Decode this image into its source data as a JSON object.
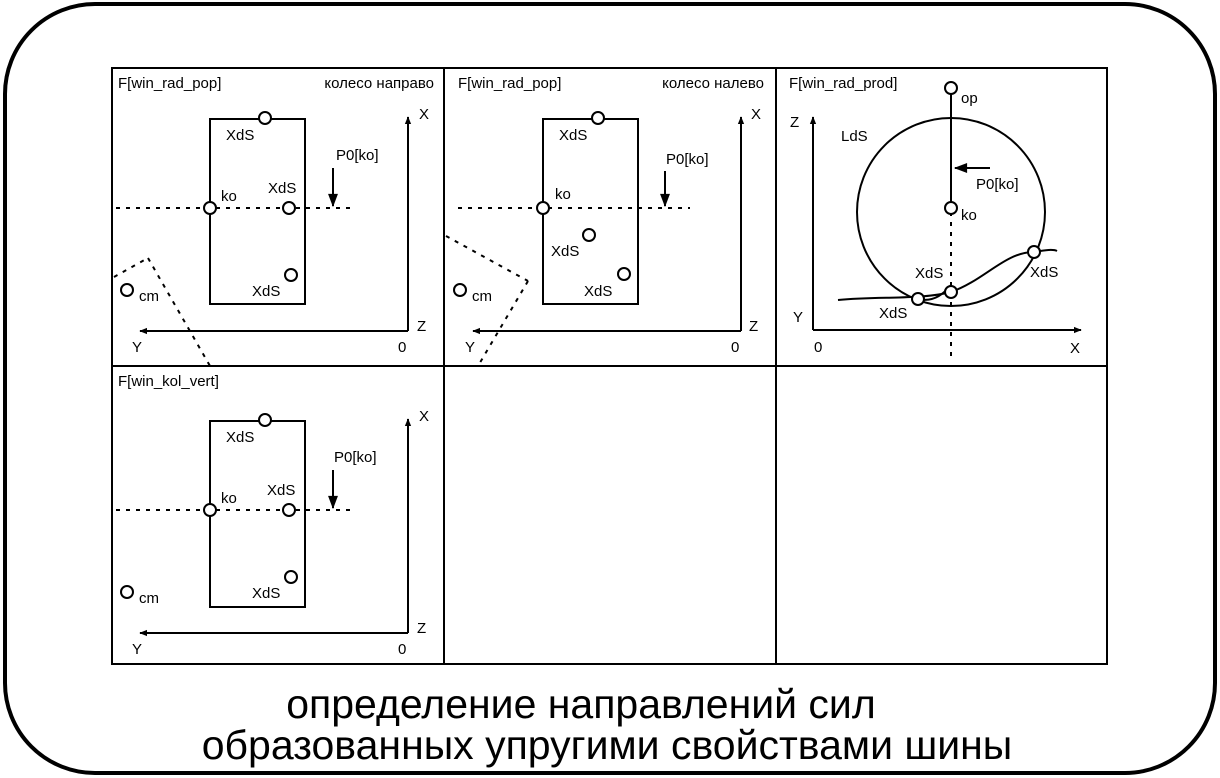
{
  "panels": {
    "p1": {
      "title": "F[win_rad_pop]",
      "subtitle": "колесо направо",
      "labels": {
        "xds_top": "XdS",
        "xds_mid": "XdS",
        "xds_bottom": "XdS",
        "ko": "ko",
        "p0": "P0[ko]",
        "cm": "cm",
        "x": "X",
        "z": "Z",
        "y": "Y",
        "zero": "0"
      }
    },
    "p2": {
      "title": "F[win_rad_pop]",
      "subtitle": "колесо налево",
      "labels": {
        "xds_top": "XdS",
        "xds_mid": "XdS",
        "xds_bottom": "XdS",
        "ko": "ko",
        "p0": "P0[ko]",
        "cm": "cm",
        "x": "X",
        "z": "Z",
        "y": "Y",
        "zero": "0"
      }
    },
    "p3": {
      "title": "F[win_rad_prod]",
      "labels": {
        "op": "op",
        "z": "Z",
        "lds": "LdS",
        "p0": "P0[ko]",
        "ko": "ko",
        "xds_left": "XdS",
        "xds_right": "XdS",
        "xds_bottom": "XdS",
        "y": "Y",
        "zero": "0",
        "x": "X"
      }
    },
    "p4": {
      "title": "F[win_kol_vert]",
      "labels": {
        "xds_top": "XdS",
        "xds_mid": "XdS",
        "xds_bottom": "XdS",
        "ko": "ko",
        "p0": "P0[ko]",
        "cm": "cm",
        "x": "X",
        "z": "Z",
        "y": "Y",
        "zero": "0"
      }
    }
  },
  "caption": {
    "line1": "определение направлений сил",
    "line2": "образованных упругими свойствами шины"
  }
}
